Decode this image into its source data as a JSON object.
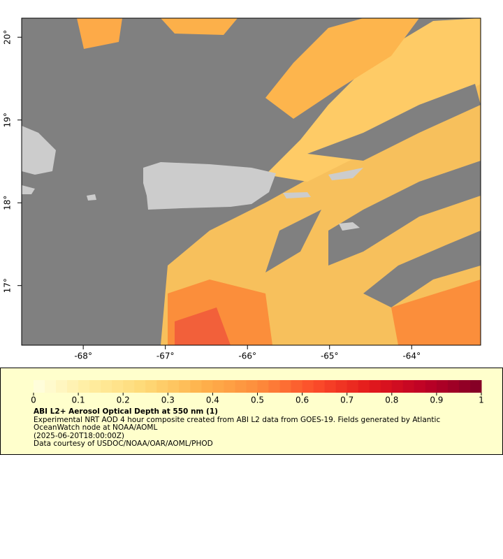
{
  "chart_data": {
    "type": "map",
    "xlim": [
      -68.75,
      -63.16
    ],
    "ylim": [
      16.28,
      20.23
    ],
    "xticks": [
      {
        "value": -68,
        "label": "-68°"
      },
      {
        "value": -67,
        "label": "-67°"
      },
      {
        "value": -66,
        "label": "-66°"
      },
      {
        "value": -65,
        "label": "-65°"
      },
      {
        "value": -64,
        "label": "-64°"
      }
    ],
    "yticks": [
      {
        "value": 17,
        "label": "17°"
      },
      {
        "value": 18,
        "label": "18°"
      },
      {
        "value": 19,
        "label": "19°"
      },
      {
        "value": 20,
        "label": "20°"
      }
    ],
    "colorbar": {
      "lim": [
        0,
        1
      ],
      "ticks": [
        0,
        0.1,
        0.2,
        0.3,
        0.4,
        0.5,
        0.6,
        0.7,
        0.8,
        0.9,
        1
      ],
      "colors": [
        "#ffffe0",
        "#ffeda0",
        "#fed976",
        "#feb24c",
        "#fd8d3c",
        "#fc4e2a",
        "#e31a1c",
        "#bd0026",
        "#800026"
      ]
    },
    "title": "ABI L2+ Aerosol Optical Depth at 550 nm (1)",
    "description": "Experimental NRT AOD 4 hour composite created from ABI L2 data from GOES-19. Fields generated by Atlantic OceanWatch node at NOAA/AOML",
    "date": "(2025-06-20T18:00:00Z)",
    "credit": "Data courtesy of USDOC/NOAA/OAR/AOML/PHOD"
  }
}
